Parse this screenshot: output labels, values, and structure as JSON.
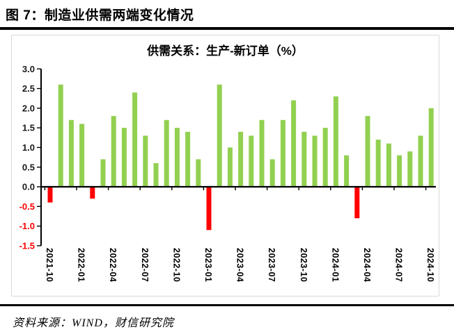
{
  "header": {
    "title": "图 7：制造业供需两端变化情况"
  },
  "footer": {
    "source": "资料来源：WIND，财信研究院"
  },
  "chart_data": {
    "type": "bar",
    "title": "供需关系：生产-新订单（%）",
    "xlabel": "",
    "ylabel": "",
    "ylim": [
      -1.5,
      3.0
    ],
    "y_tick_step": 0.5,
    "grid": false,
    "legend": null,
    "y_ticks": [
      3.0,
      2.5,
      2.0,
      1.5,
      1.0,
      0.5,
      0.0,
      -0.5,
      -1.0,
      -1.5
    ],
    "x_tick_labels": [
      "2021-10",
      "2022-01",
      "2022-04",
      "2022-07",
      "2022-10",
      "2023-01",
      "2023-04",
      "2023-07",
      "2023-10",
      "2024-01",
      "2024-04",
      "2024-07",
      "2024-10"
    ],
    "categories": [
      "2021-10",
      "2021-11",
      "2021-12",
      "2022-01",
      "2022-02",
      "2022-03",
      "2022-04",
      "2022-05",
      "2022-06",
      "2022-07",
      "2022-08",
      "2022-09",
      "2022-10",
      "2022-11",
      "2022-12",
      "2023-01",
      "2023-02",
      "2023-03",
      "2023-04",
      "2023-05",
      "2023-06",
      "2023-07",
      "2023-08",
      "2023-09",
      "2023-10",
      "2023-11",
      "2023-12",
      "2024-01",
      "2024-02",
      "2024-03",
      "2024-04",
      "2024-05",
      "2024-06",
      "2024-07",
      "2024-08",
      "2024-09",
      "2024-10"
    ],
    "values": [
      -0.4,
      2.6,
      1.7,
      1.6,
      -0.3,
      0.7,
      1.8,
      1.5,
      2.4,
      1.3,
      0.6,
      1.7,
      1.5,
      1.4,
      0.7,
      -1.1,
      2.6,
      1.0,
      1.4,
      1.3,
      1.7,
      0.7,
      1.7,
      2.2,
      1.4,
      1.3,
      1.5,
      2.3,
      0.8,
      -0.8,
      1.8,
      1.2,
      1.1,
      0.8,
      0.9,
      1.3,
      2.0
    ],
    "colors": {
      "bar_positive": "#92D050",
      "bar_negative": "#FF0000",
      "axis": "#000000",
      "tick_label": "#1A1A1A",
      "tick_label_negative": "#FF0000",
      "x_tick_label": "#000000",
      "panel_border": "#D8D8D8"
    }
  }
}
